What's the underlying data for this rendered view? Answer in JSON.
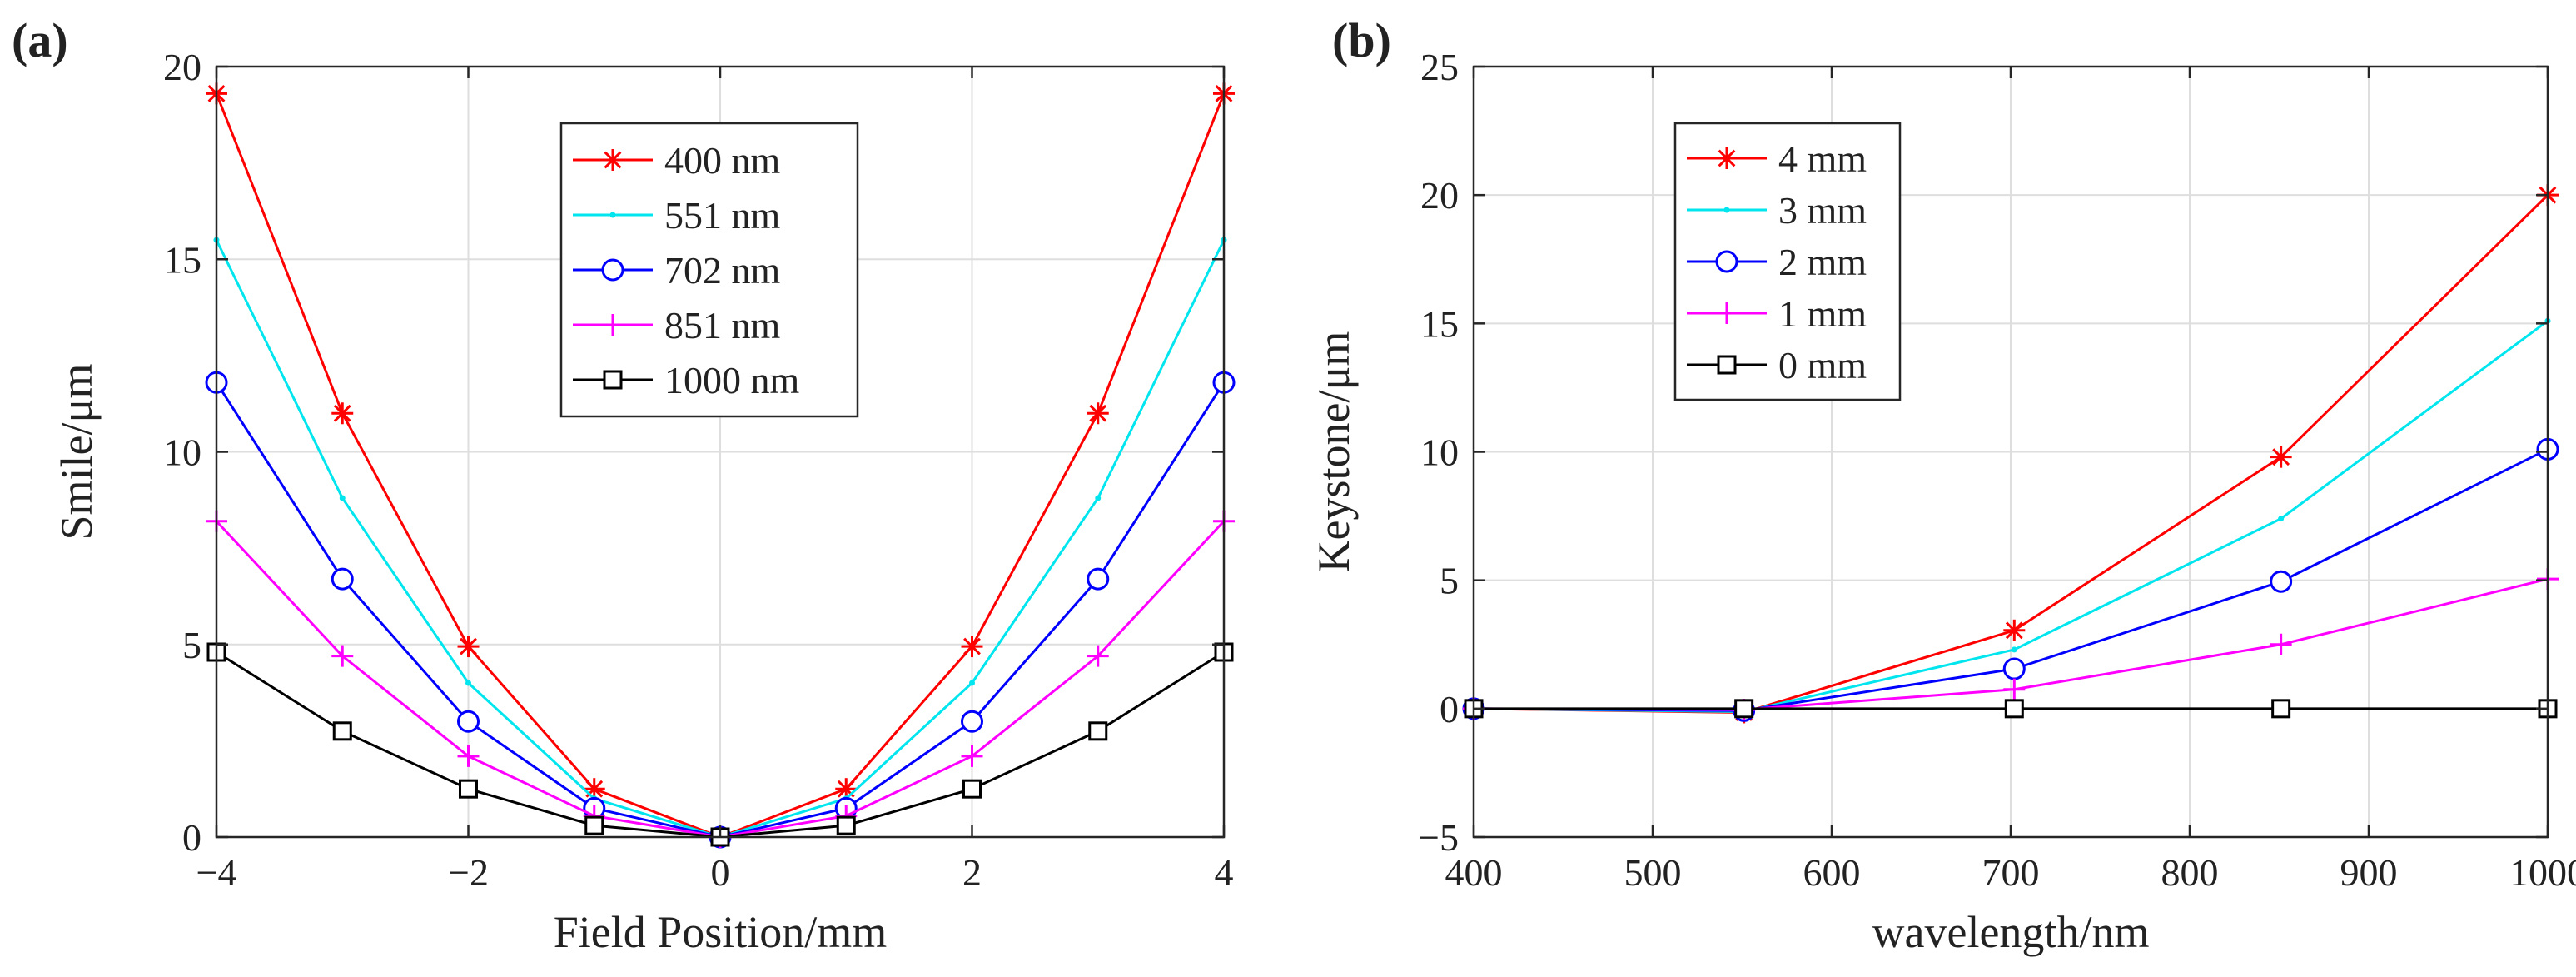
{
  "chart_data": [
    {
      "type": "line",
      "panel_label": "(a)",
      "title": "",
      "xlabel": "Field Position/mm",
      "ylabel": "Smile/μm",
      "xlim": [
        -4,
        4
      ],
      "ylim": [
        0,
        20
      ],
      "xticks": [
        -4,
        -2,
        0,
        2,
        4
      ],
      "xtick_labels": [
        "−4",
        "−2",
        "0",
        "2",
        "4"
      ],
      "yticks": [
        0,
        5,
        10,
        15,
        20
      ],
      "ytick_labels": [
        "0",
        "5",
        "10",
        "15",
        "20"
      ],
      "grid": true,
      "legend_position": "top-center",
      "x": [
        -4,
        -3,
        -2,
        -1,
        0,
        1,
        2,
        3,
        4
      ],
      "series": [
        {
          "name": "400 nm",
          "color": "#ff0000",
          "marker": "asterisk",
          "values": [
            19.3,
            11.0,
            4.95,
            1.25,
            0,
            1.25,
            4.95,
            11.0,
            19.3
          ]
        },
        {
          "name": "551 nm",
          "color": "#00e5ee",
          "marker": "point",
          "values": [
            15.5,
            8.8,
            4.0,
            1.0,
            0,
            1.0,
            4.0,
            8.8,
            15.5
          ]
        },
        {
          "name": "702 nm",
          "color": "#0000ff",
          "marker": "circle",
          "values": [
            11.8,
            6.7,
            3.0,
            0.75,
            0,
            0.75,
            3.0,
            6.7,
            11.8
          ]
        },
        {
          "name": "851 nm",
          "color": "#ff00ff",
          "marker": "plus",
          "values": [
            8.2,
            4.7,
            2.1,
            0.55,
            0,
            0.55,
            2.1,
            4.7,
            8.2
          ]
        },
        {
          "name": "1000 nm",
          "color": "#000000",
          "marker": "square",
          "values": [
            4.8,
            2.75,
            1.25,
            0.3,
            0,
            0.3,
            1.25,
            2.75,
            4.8
          ]
        }
      ]
    },
    {
      "type": "line",
      "panel_label": "(b)",
      "title": "",
      "xlabel": "wavelength/nm",
      "ylabel": "Keystone/μm",
      "xlim": [
        400,
        1000
      ],
      "ylim": [
        -5,
        25
      ],
      "xticks": [
        400,
        500,
        600,
        700,
        800,
        900,
        1000
      ],
      "xtick_labels": [
        "400",
        "500",
        "600",
        "700",
        "800",
        "900",
        "1000"
      ],
      "yticks": [
        -5,
        0,
        5,
        10,
        15,
        20,
        25
      ],
      "ytick_labels": [
        "−5",
        "0",
        "5",
        "10",
        "15",
        "20",
        "25"
      ],
      "grid": true,
      "legend_position": "top-left",
      "x": [
        400,
        551,
        702,
        851,
        1000
      ],
      "series": [
        {
          "name": "4 mm",
          "color": "#ff0000",
          "marker": "asterisk",
          "values": [
            0,
            -0.15,
            3.05,
            9.8,
            20.0
          ]
        },
        {
          "name": "3 mm",
          "color": "#00e5ee",
          "marker": "point",
          "values": [
            0,
            -0.12,
            2.3,
            7.4,
            15.1
          ]
        },
        {
          "name": "2 mm",
          "color": "#0000ff",
          "marker": "circle",
          "values": [
            0,
            -0.08,
            1.55,
            4.95,
            10.1
          ]
        },
        {
          "name": "1 mm",
          "color": "#ff00ff",
          "marker": "plus",
          "values": [
            0,
            -0.04,
            0.75,
            2.5,
            5.05
          ]
        },
        {
          "name": "0 mm",
          "color": "#000000",
          "marker": "square",
          "values": [
            0,
            0,
            0,
            0,
            0
          ]
        }
      ]
    }
  ]
}
